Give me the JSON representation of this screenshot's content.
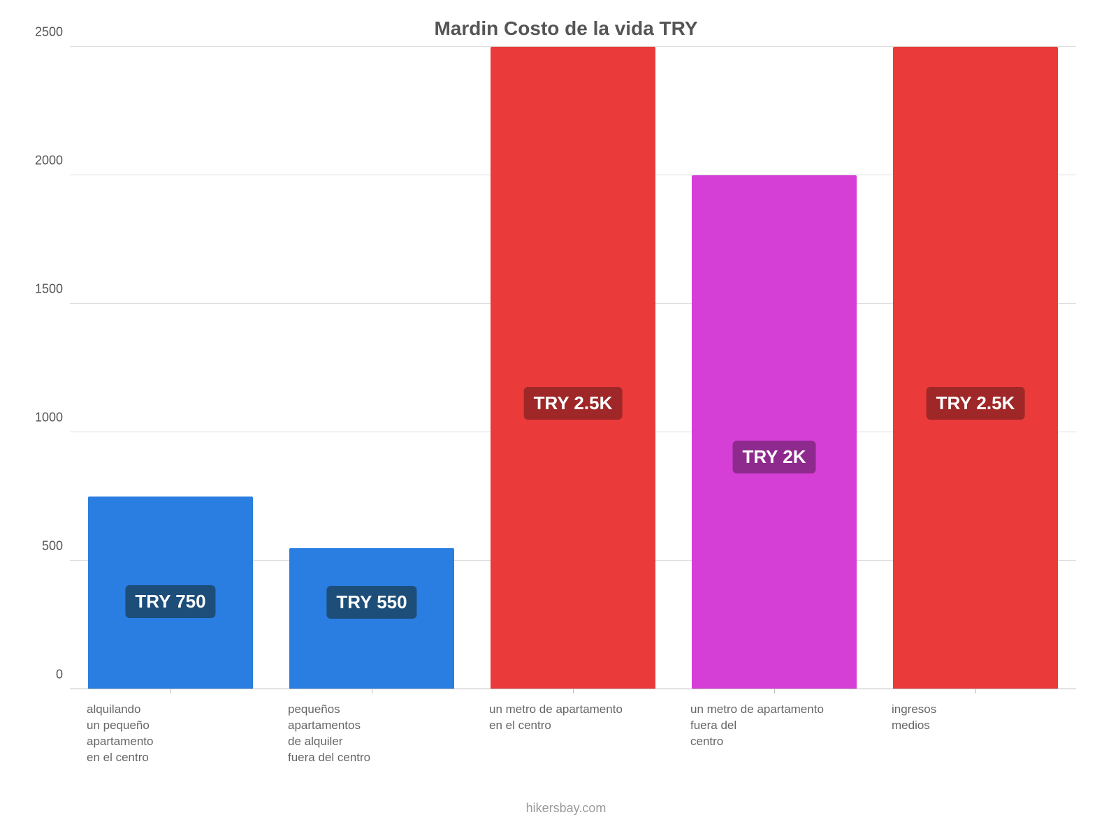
{
  "chart": {
    "type": "bar",
    "title": "Mardin Costo de la vida TRY",
    "title_fontsize": 28,
    "title_color": "#555555",
    "background_color": "#ffffff",
    "grid_color": "#dddddd",
    "axis_color": "#bbbbbb",
    "ylim": [
      0,
      2500
    ],
    "ytick_step": 500,
    "yticks": [
      "0",
      "500",
      "1000",
      "1500",
      "2000",
      "2500"
    ],
    "ytick_fontsize": 18,
    "ytick_color": "#555555",
    "xlabel_fontsize": 17,
    "xlabel_color": "#666666",
    "bar_width_pct": 82,
    "bars": [
      {
        "label": "alquilando\nun pequeño\napartamento\nen el centro",
        "value": 750,
        "value_label": "TRY 750",
        "color": "#2a7de1",
        "badge_bg": "#1d4e7a",
        "badge_bottom_pct": 37
      },
      {
        "label": "pequeños\napartamentos\nde alquiler\nfuera del centro",
        "value": 550,
        "value_label": "TRY 550",
        "color": "#2a7de1",
        "badge_bg": "#1d4e7a",
        "badge_bottom_pct": 50
      },
      {
        "label": "un metro de apartamento\nen el centro",
        "value": 2500,
        "value_label": "TRY 2.5K",
        "color": "#ea3a3a",
        "badge_bg": "#9f2727",
        "badge_bottom_pct": 42
      },
      {
        "label": "un metro de apartamento\nfuera del\ncentro",
        "value": 2000,
        "value_label": "TRY 2K",
        "color": "#d63fd6",
        "badge_bg": "#8e2a8e",
        "badge_bottom_pct": 42
      },
      {
        "label": "ingresos\nmedios",
        "value": 2500,
        "value_label": "TRY 2.5K",
        "color": "#ea3a3a",
        "badge_bg": "#9f2727",
        "badge_bottom_pct": 42
      }
    ],
    "footer": "hikersbay.com",
    "footer_color": "#9a9a9a",
    "footer_fontsize": 18,
    "value_badge_fontsize": 26,
    "value_badge_color": "#ffffff"
  }
}
